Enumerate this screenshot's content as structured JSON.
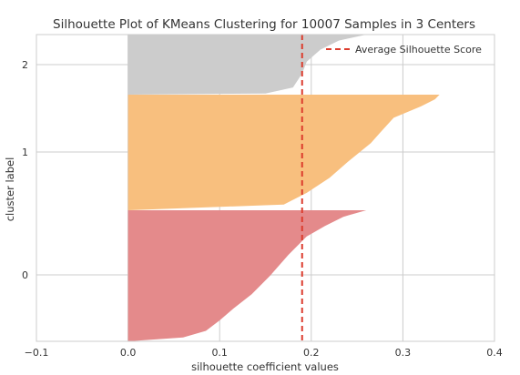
{
  "chart_data": {
    "type": "area",
    "title": "Silhouette Plot of KMeans Clustering for 10007 Samples in 3 Centers",
    "xlabel": "silhouette coefficient values",
    "ylabel": "cluster label",
    "xlim": [
      -0.1,
      0.4
    ],
    "xticks": [
      "−0.1",
      "0.0",
      "0.1",
      "0.2",
      "0.3",
      "0.4"
    ],
    "xtick_values": [
      -0.1,
      0.0,
      0.1,
      0.2,
      0.3,
      0.4
    ],
    "ytick_labels": [
      "0",
      "1",
      "2"
    ],
    "grid": true,
    "legend_position": "top-right",
    "average_silhouette_score": 0.19,
    "clusters": [
      {
        "label": "0",
        "color": "#e48a8b",
        "profile": [
          [
            0.0,
            0.0
          ],
          [
            0.06,
            0.03
          ],
          [
            0.085,
            0.08
          ],
          [
            0.1,
            0.16
          ],
          [
            0.115,
            0.25
          ],
          [
            0.135,
            0.36
          ],
          [
            0.155,
            0.5
          ],
          [
            0.175,
            0.66
          ],
          [
            0.195,
            0.8
          ],
          [
            0.215,
            0.88
          ],
          [
            0.235,
            0.95
          ],
          [
            0.26,
            1.0
          ]
        ]
      },
      {
        "label": "1",
        "color": "#f8bf7e",
        "profile": [
          [
            0.0,
            0.0
          ],
          [
            0.17,
            0.05
          ],
          [
            0.195,
            0.15
          ],
          [
            0.22,
            0.28
          ],
          [
            0.24,
            0.42
          ],
          [
            0.265,
            0.58
          ],
          [
            0.275,
            0.67
          ],
          [
            0.29,
            0.8
          ],
          [
            0.32,
            0.9
          ],
          [
            0.335,
            0.96
          ],
          [
            0.34,
            1.0
          ]
        ]
      },
      {
        "label": "2",
        "color": "#cccccc",
        "profile": [
          [
            0.0,
            0.0
          ],
          [
            0.15,
            0.02
          ],
          [
            0.18,
            0.12
          ],
          [
            0.19,
            0.35
          ],
          [
            0.195,
            0.55
          ],
          [
            0.21,
            0.75
          ],
          [
            0.23,
            0.9
          ],
          [
            0.26,
            1.0
          ]
        ]
      }
    ],
    "legend": [
      {
        "label": "Average Silhouette Score",
        "color": "#dc3c2d",
        "style": "dashed"
      }
    ]
  }
}
